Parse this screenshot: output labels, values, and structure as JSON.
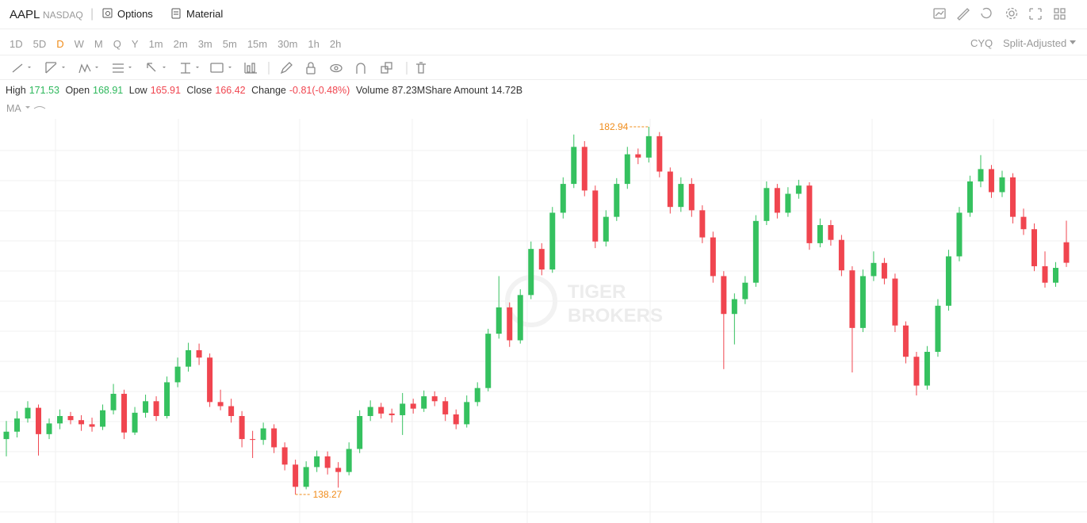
{
  "header": {
    "symbol": "AAPL",
    "exchange": "NASDAQ",
    "options": "Options",
    "material": "Material"
  },
  "periods": [
    "1D",
    "5D",
    "D",
    "W",
    "M",
    "Q",
    "Y",
    "1m",
    "2m",
    "3m",
    "5m",
    "15m",
    "30m",
    "1h",
    "2h"
  ],
  "active_period": "D",
  "right_controls": {
    "cyq": "CYQ",
    "adjust": "Split-Adjusted"
  },
  "quote": {
    "high_label": "High",
    "high": 171.53,
    "open_label": "Open",
    "open": 168.91,
    "low_label": "Low",
    "low": 165.91,
    "close_label": "Close",
    "close": 166.42,
    "change_label": "Change",
    "change": "-0.81(-0.48%)",
    "volume_label": "Volume",
    "volume": "87.23M",
    "amount_label": "Share Amount",
    "amount": "14.72B"
  },
  "indicator": "MA",
  "watermark": [
    "TIGER",
    "BROKERS"
  ],
  "chart_data": {
    "type": "candlestick",
    "up_color": "#35c15f",
    "down_color": "#f0454f",
    "annotation_color": "#f08c1a",
    "candles": [
      [
        145.0,
        147.2,
        142.9,
        145.9
      ],
      [
        145.9,
        148.4,
        145.2,
        147.5
      ],
      [
        147.5,
        149.6,
        147.0,
        148.8
      ],
      [
        148.8,
        149.2,
        143.0,
        145.6
      ],
      [
        145.6,
        147.5,
        145.0,
        146.9
      ],
      [
        146.9,
        148.6,
        146.2,
        147.8
      ],
      [
        147.8,
        148.3,
        146.8,
        147.3
      ],
      [
        147.3,
        147.9,
        146.0,
        146.8
      ],
      [
        146.8,
        147.6,
        145.9,
        146.5
      ],
      [
        146.5,
        149.2,
        146.1,
        148.5
      ],
      [
        148.5,
        151.7,
        148.0,
        150.5
      ],
      [
        150.5,
        151.0,
        145.0,
        145.8
      ],
      [
        145.8,
        148.9,
        145.5,
        148.2
      ],
      [
        148.2,
        150.4,
        147.6,
        149.6
      ],
      [
        149.6,
        150.2,
        147.2,
        147.8
      ],
      [
        147.8,
        152.6,
        147.5,
        151.9
      ],
      [
        151.9,
        154.9,
        151.3,
        153.8
      ],
      [
        153.8,
        156.7,
        153.2,
        155.8
      ],
      [
        155.8,
        156.6,
        154.0,
        154.9
      ],
      [
        154.9,
        155.4,
        148.9,
        149.5
      ],
      [
        149.5,
        151.0,
        148.5,
        149.0
      ],
      [
        149.0,
        149.9,
        147.0,
        147.8
      ],
      [
        147.8,
        148.4,
        144.0,
        145.0
      ],
      [
        145.0,
        146.0,
        142.7,
        144.9
      ],
      [
        144.9,
        147.0,
        144.3,
        146.3
      ],
      [
        146.3,
        146.8,
        143.3,
        144.0
      ],
      [
        144.0,
        144.6,
        141.2,
        141.9
      ],
      [
        141.9,
        142.5,
        138.27,
        139.2
      ],
      [
        139.2,
        142.3,
        138.9,
        141.6
      ],
      [
        141.6,
        143.6,
        141.0,
        142.9
      ],
      [
        142.9,
        143.5,
        140.7,
        141.5
      ],
      [
        141.5,
        142.2,
        139.1,
        141.0
      ],
      [
        141.0,
        144.6,
        140.6,
        143.8
      ],
      [
        143.8,
        148.5,
        143.3,
        147.8
      ],
      [
        147.8,
        149.7,
        147.2,
        148.9
      ],
      [
        148.9,
        149.4,
        147.5,
        148.1
      ],
      [
        148.1,
        148.7,
        147.0,
        147.9
      ],
      [
        147.9,
        150.6,
        145.5,
        149.3
      ],
      [
        149.3,
        149.9,
        148.1,
        148.7
      ],
      [
        148.7,
        150.9,
        148.3,
        150.2
      ],
      [
        150.2,
        150.8,
        149.0,
        149.6
      ],
      [
        149.6,
        150.1,
        147.2,
        148.0
      ],
      [
        148.0,
        148.6,
        146.2,
        146.8
      ],
      [
        146.8,
        150.3,
        146.4,
        149.5
      ],
      [
        149.5,
        151.9,
        149.0,
        151.2
      ],
      [
        151.2,
        158.4,
        150.8,
        157.8
      ],
      [
        157.8,
        164.8,
        157.2,
        161.0
      ],
      [
        161.0,
        161.6,
        156.2,
        157.0
      ],
      [
        157.0,
        163.2,
        156.6,
        162.5
      ],
      [
        162.5,
        169.0,
        162.0,
        168.1
      ],
      [
        168.1,
        168.8,
        164.9,
        165.6
      ],
      [
        165.6,
        173.2,
        165.2,
        172.5
      ],
      [
        172.5,
        176.8,
        171.8,
        176.0
      ],
      [
        176.0,
        182.0,
        175.5,
        180.5
      ],
      [
        180.5,
        181.2,
        174.5,
        175.2
      ],
      [
        175.2,
        175.8,
        168.2,
        169.0
      ],
      [
        169.0,
        172.8,
        168.4,
        172.0
      ],
      [
        172.0,
        176.7,
        171.5,
        176.0
      ],
      [
        176.0,
        180.5,
        175.4,
        179.6
      ],
      [
        179.6,
        180.3,
        178.4,
        179.2
      ],
      [
        179.2,
        182.94,
        178.6,
        181.8
      ],
      [
        181.8,
        182.3,
        176.8,
        177.5
      ],
      [
        177.5,
        178.0,
        172.4,
        173.2
      ],
      [
        173.2,
        176.8,
        172.6,
        176.0
      ],
      [
        176.0,
        176.7,
        172.0,
        172.8
      ],
      [
        172.8,
        173.4,
        168.8,
        169.5
      ],
      [
        169.5,
        170.2,
        164.0,
        164.8
      ],
      [
        164.8,
        165.4,
        153.5,
        160.2
      ],
      [
        160.2,
        162.7,
        156.5,
        162.0
      ],
      [
        162.0,
        164.8,
        161.4,
        164.0
      ],
      [
        164.0,
        172.2,
        163.5,
        171.5
      ],
      [
        171.5,
        176.3,
        171.0,
        175.5
      ],
      [
        175.5,
        176.0,
        171.8,
        172.5
      ],
      [
        172.5,
        175.6,
        172.0,
        174.8
      ],
      [
        174.8,
        176.5,
        174.2,
        175.8
      ],
      [
        175.8,
        176.2,
        168.0,
        168.8
      ],
      [
        168.8,
        171.8,
        168.3,
        171.0
      ],
      [
        171.0,
        171.6,
        168.5,
        169.2
      ],
      [
        169.2,
        169.8,
        164.8,
        165.5
      ],
      [
        165.5,
        166.0,
        153.1,
        158.5
      ],
      [
        158.5,
        165.6,
        158.0,
        164.8
      ],
      [
        164.8,
        167.8,
        164.2,
        166.4
      ],
      [
        166.4,
        167.0,
        163.8,
        164.5
      ],
      [
        164.5,
        165.1,
        158.0,
        158.8
      ],
      [
        158.8,
        159.3,
        154.2,
        155.0
      ],
      [
        155.0,
        155.6,
        150.3,
        151.5
      ],
      [
        151.5,
        156.3,
        151.0,
        155.6
      ],
      [
        155.6,
        162.0,
        155.0,
        161.2
      ],
      [
        161.2,
        168.0,
        160.6,
        167.2
      ],
      [
        167.2,
        173.2,
        166.6,
        172.5
      ],
      [
        172.5,
        177.0,
        172.0,
        176.3
      ],
      [
        176.3,
        179.5,
        175.6,
        177.8
      ],
      [
        177.8,
        178.3,
        174.3,
        175.0
      ],
      [
        175.0,
        177.6,
        174.4,
        176.8
      ],
      [
        176.8,
        177.3,
        171.2,
        172.0
      ],
      [
        172.0,
        173.0,
        169.8,
        170.5
      ],
      [
        170.5,
        171.2,
        165.4,
        166.0
      ],
      [
        166.0,
        167.8,
        163.4,
        164.0
      ],
      [
        164.0,
        166.5,
        163.5,
        165.8
      ],
      [
        168.91,
        171.53,
        165.91,
        166.42
      ]
    ]
  }
}
